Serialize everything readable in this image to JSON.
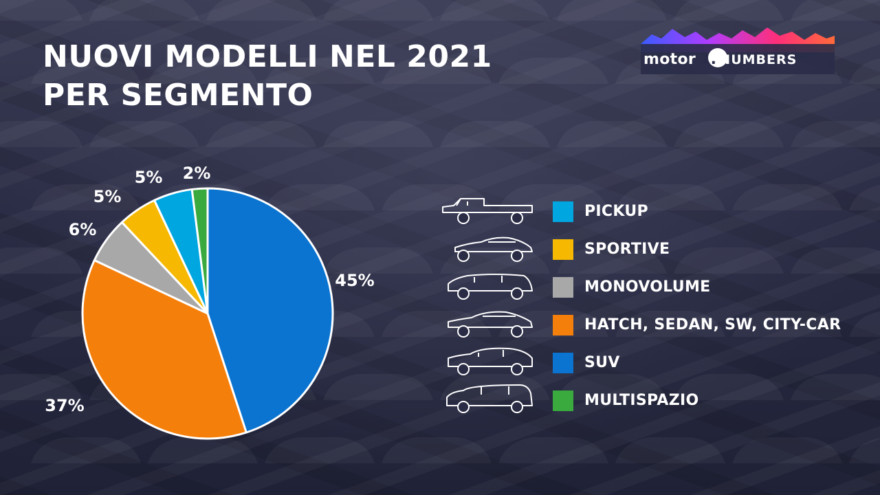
{
  "title": {
    "line1": "NUOVI MODELLI NEL 2021",
    "line2": "PER SEGMENTO"
  },
  "logo": {
    "word": "motor",
    "digit": "1.",
    "suffix": "NUMBERS"
  },
  "chart_data": {
    "type": "pie",
    "slices": [
      {
        "name": "SUV",
        "value": 45,
        "label": "45%",
        "color": "#0a74d0",
        "icon": "suv-icon"
      },
      {
        "name": "HATCH, SEDAN, SW, CITY-CAR",
        "value": 37,
        "label": "37%",
        "color": "#f57f0b",
        "icon": "sedan-icon"
      },
      {
        "name": "MONOVOLUME",
        "value": 6,
        "label": "6%",
        "color": "#a8a8a8",
        "icon": "minivan-icon"
      },
      {
        "name": "SPORTIVE",
        "value": 5,
        "label": "5%",
        "color": "#f6b800",
        "icon": "sports-car-icon"
      },
      {
        "name": "PICKUP",
        "value": 5,
        "label": "5%",
        "color": "#00a6e0",
        "icon": "pickup-truck-icon"
      },
      {
        "name": "MULTISPAZIO",
        "value": 2,
        "label": "2%",
        "color": "#3aa93e",
        "icon": "multispace-van-icon"
      }
    ],
    "legend": {
      "placement": "right",
      "order": [
        "PICKUP",
        "SPORTIVE",
        "MONOVOLUME",
        "HATCH, SEDAN, SW, CITY-CAR",
        "SUV",
        "MULTISPAZIO"
      ]
    }
  }
}
